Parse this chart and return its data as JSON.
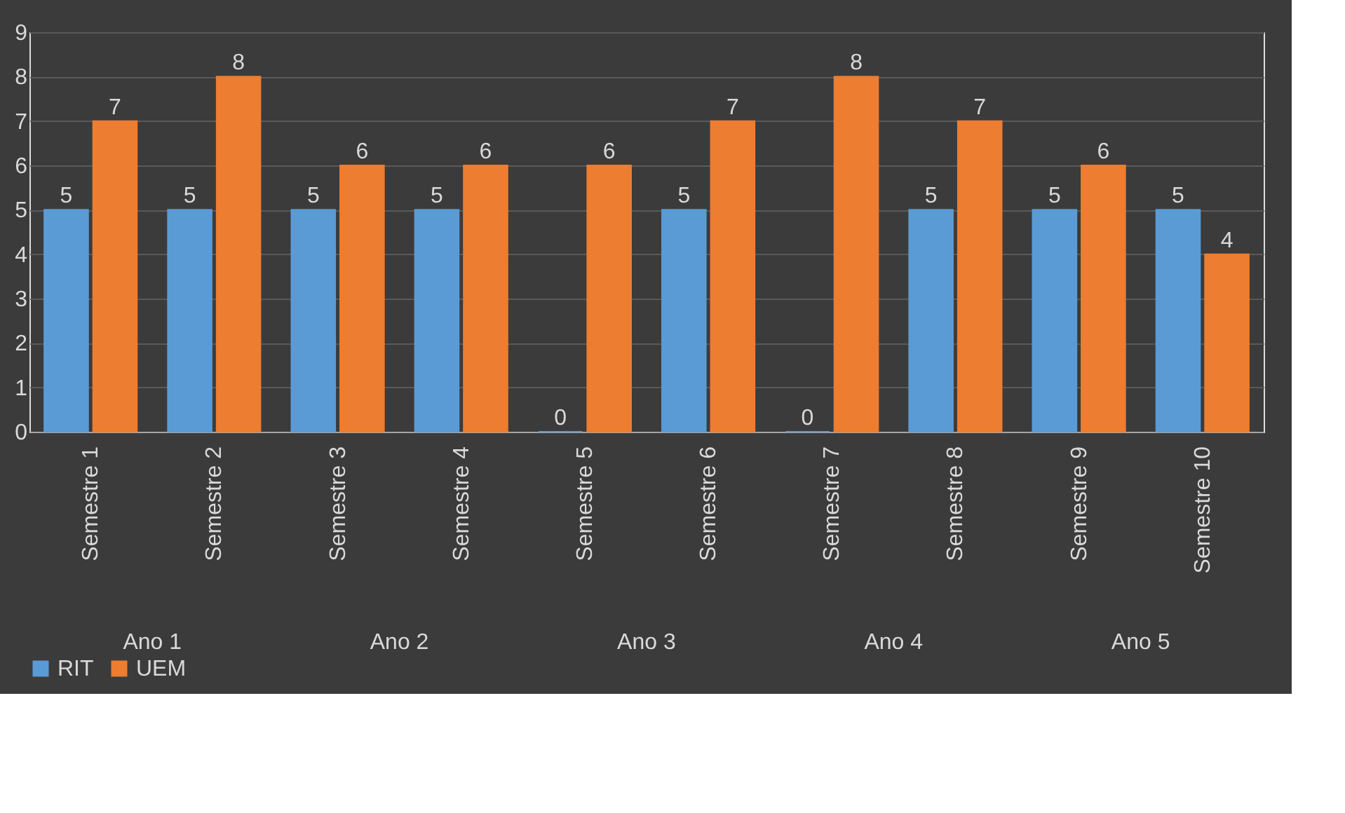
{
  "chart_data": {
    "type": "bar",
    "categories": [
      "Semestre 1",
      "Semestre 2",
      "Semestre 3",
      "Semestre 4",
      "Semestre 5",
      "Semestre 6",
      "Semestre 7",
      "Semestre 8",
      "Semestre 9",
      "Semestre 10"
    ],
    "series": [
      {
        "name": "RIT",
        "color": "#5b9bd5",
        "values": [
          5,
          5,
          5,
          5,
          0,
          5,
          0,
          5,
          5,
          5
        ]
      },
      {
        "name": "UEM",
        "color": "#ed7d31",
        "values": [
          7,
          8,
          6,
          6,
          6,
          7,
          8,
          7,
          6,
          4
        ]
      }
    ],
    "annotations": [
      "Ano 1",
      "Ano 2",
      "Ano 3",
      "Ano 4",
      "Ano 5"
    ],
    "ylim": [
      0,
      9
    ],
    "yticks": [
      0,
      1,
      2,
      3,
      4,
      5,
      6,
      7,
      8,
      9
    ],
    "grid": "y",
    "legend": "bottom",
    "data_labels": true
  }
}
